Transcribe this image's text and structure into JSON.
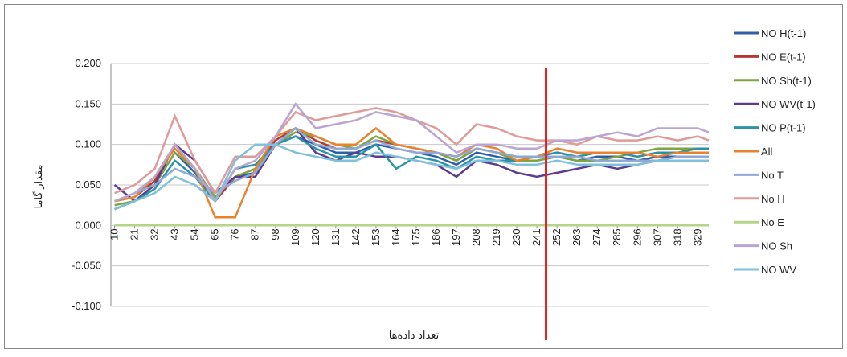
{
  "chart_data": {
    "type": "line",
    "y_label": "مقدار گاما",
    "x_label": "تعداد داده‌ها",
    "x": [
      10,
      21,
      32,
      43,
      54,
      65,
      76,
      87,
      98,
      109,
      120,
      131,
      142,
      153,
      164,
      175,
      186,
      197,
      208,
      219,
      230,
      241,
      252,
      263,
      274,
      285,
      296,
      307,
      318,
      329,
      335
    ],
    "xlim": [
      8,
      335
    ],
    "xticks": [
      10,
      21,
      32,
      43,
      54,
      65,
      76,
      87,
      98,
      109,
      120,
      131,
      142,
      153,
      164,
      175,
      186,
      197,
      208,
      219,
      230,
      241,
      252,
      263,
      274,
      285,
      296,
      307,
      318,
      329
    ],
    "ylim": [
      -0.1,
      0.2
    ],
    "yticks": [
      {
        "value": -0.1,
        "label": "-0.100"
      },
      {
        "value": -0.05,
        "label": "-0.050"
      },
      {
        "value": 0,
        "label": "0.000"
      },
      {
        "value": 0.05,
        "label": "0.050"
      },
      {
        "value": 0.1,
        "label": "0.100"
      },
      {
        "value": 0.15,
        "label": "0.150"
      },
      {
        "value": 0.2,
        "label": "0.200"
      }
    ],
    "grid": true,
    "legend": "right",
    "marker_line": {
      "x": 246,
      "top": 0.195,
      "color": "#e8211c"
    },
    "series": [
      {
        "name": "NO H(t-1)",
        "color": "#2e5fa8",
        "values": [
          0.02,
          0.03,
          0.05,
          0.09,
          0.065,
          0.03,
          0.06,
          0.065,
          0.1,
          0.11,
          0.1,
          0.09,
          0.09,
          0.1,
          0.095,
          0.09,
          0.085,
          0.075,
          0.09,
          0.085,
          0.08,
          0.08,
          0.085,
          0.08,
          0.085,
          0.085,
          0.08,
          0.085,
          0.085,
          0.085,
          0.085
        ]
      },
      {
        "name": "NO E(t-1)",
        "color": "#b53a33",
        "values": [
          0.03,
          0.035,
          0.055,
          0.1,
          0.07,
          0.03,
          0.06,
          0.07,
          0.105,
          0.12,
          0.105,
          0.095,
          0.095,
          0.105,
          0.1,
          0.095,
          0.09,
          0.08,
          0.095,
          0.09,
          0.085,
          0.085,
          0.09,
          0.085,
          0.09,
          0.09,
          0.085,
          0.09,
          0.09,
          0.09,
          0.09
        ]
      },
      {
        "name": "NO Sh(t-1)",
        "color": "#7ea53e",
        "values": [
          0.025,
          0.03,
          0.05,
          0.09,
          0.07,
          0.035,
          0.06,
          0.07,
          0.1,
          0.115,
          0.11,
          0.1,
          0.095,
          0.11,
          0.1,
          0.095,
          0.09,
          0.08,
          0.095,
          0.09,
          0.08,
          0.08,
          0.085,
          0.08,
          0.08,
          0.085,
          0.09,
          0.095,
          0.095,
          0.095,
          0.095
        ]
      },
      {
        "name": "NO WV(t-1)",
        "color": "#5b3c8e",
        "values": [
          0.05,
          0.03,
          0.05,
          0.1,
          0.08,
          0.04,
          0.06,
          0.06,
          0.1,
          0.12,
          0.09,
          0.08,
          0.09,
          0.085,
          0.085,
          0.08,
          0.075,
          0.06,
          0.08,
          0.075,
          0.065,
          0.06,
          0.065,
          0.07,
          0.075,
          0.07,
          0.075,
          0.08,
          0.085,
          0.085,
          0.085
        ]
      },
      {
        "name": "NO P(t-1)",
        "color": "#2a93a8",
        "values": [
          0.02,
          0.03,
          0.045,
          0.08,
          0.06,
          0.03,
          0.07,
          0.075,
          0.1,
          0.11,
          0.095,
          0.085,
          0.085,
          0.1,
          0.07,
          0.085,
          0.08,
          0.07,
          0.085,
          0.08,
          0.08,
          0.085,
          0.09,
          0.085,
          0.09,
          0.09,
          0.085,
          0.09,
          0.09,
          0.095,
          0.095
        ]
      },
      {
        "name": "All",
        "color": "#e8822e",
        "values": [
          0.03,
          0.035,
          0.06,
          0.095,
          0.07,
          0.01,
          0.01,
          0.07,
          0.11,
          0.12,
          0.11,
          0.1,
          0.1,
          0.12,
          0.1,
          0.095,
          0.09,
          0.085,
          0.1,
          0.095,
          0.08,
          0.085,
          0.095,
          0.09,
          0.09,
          0.09,
          0.09,
          0.085,
          0.09,
          0.09,
          0.09
        ]
      },
      {
        "name": "No T",
        "color": "#8fa8d6",
        "values": [
          0.03,
          0.04,
          0.05,
          0.07,
          0.06,
          0.04,
          0.055,
          0.065,
          0.1,
          0.12,
          0.1,
          0.095,
          0.095,
          0.105,
          0.095,
          0.09,
          0.09,
          0.085,
          0.095,
          0.09,
          0.085,
          0.085,
          0.085,
          0.085,
          0.08,
          0.08,
          0.08,
          0.08,
          0.085,
          0.085,
          0.085
        ]
      },
      {
        "name": "No H",
        "color": "#e09a98",
        "values": [
          0.04,
          0.05,
          0.07,
          0.135,
          0.08,
          0.04,
          0.085,
          0.085,
          0.11,
          0.14,
          0.13,
          0.135,
          0.14,
          0.145,
          0.14,
          0.13,
          0.12,
          0.1,
          0.125,
          0.12,
          0.11,
          0.105,
          0.105,
          0.1,
          0.11,
          0.105,
          0.105,
          0.11,
          0.105,
          0.11,
          0.105
        ]
      },
      {
        "name": "No E",
        "color": "#b6d38a",
        "values": [
          0,
          0,
          0,
          0,
          0,
          0,
          0,
          0,
          0,
          0,
          0,
          0,
          0,
          0,
          0,
          0,
          0,
          0,
          0,
          0,
          0,
          0,
          0,
          0,
          0,
          0,
          0,
          0,
          0,
          0,
          0
        ]
      },
      {
        "name": "NO Sh",
        "color": "#b9a5d3",
        "values": [
          0.03,
          0.04,
          0.06,
          0.1,
          0.07,
          0.03,
          0.07,
          0.08,
          0.11,
          0.15,
          0.12,
          0.125,
          0.13,
          0.14,
          0.135,
          0.13,
          0.11,
          0.09,
          0.1,
          0.1,
          0.095,
          0.095,
          0.105,
          0.105,
          0.11,
          0.115,
          0.11,
          0.12,
          0.12,
          0.12,
          0.115
        ]
      },
      {
        "name": "NO WV",
        "color": "#7fc0db",
        "values": [
          0.02,
          0.03,
          0.04,
          0.06,
          0.05,
          0.03,
          0.08,
          0.1,
          0.1,
          0.09,
          0.085,
          0.08,
          0.08,
          0.09,
          0.085,
          0.08,
          0.075,
          0.07,
          0.08,
          0.08,
          0.075,
          0.075,
          0.08,
          0.075,
          0.075,
          0.075,
          0.075,
          0.08,
          0.08,
          0.08,
          0.08
        ]
      }
    ]
  }
}
